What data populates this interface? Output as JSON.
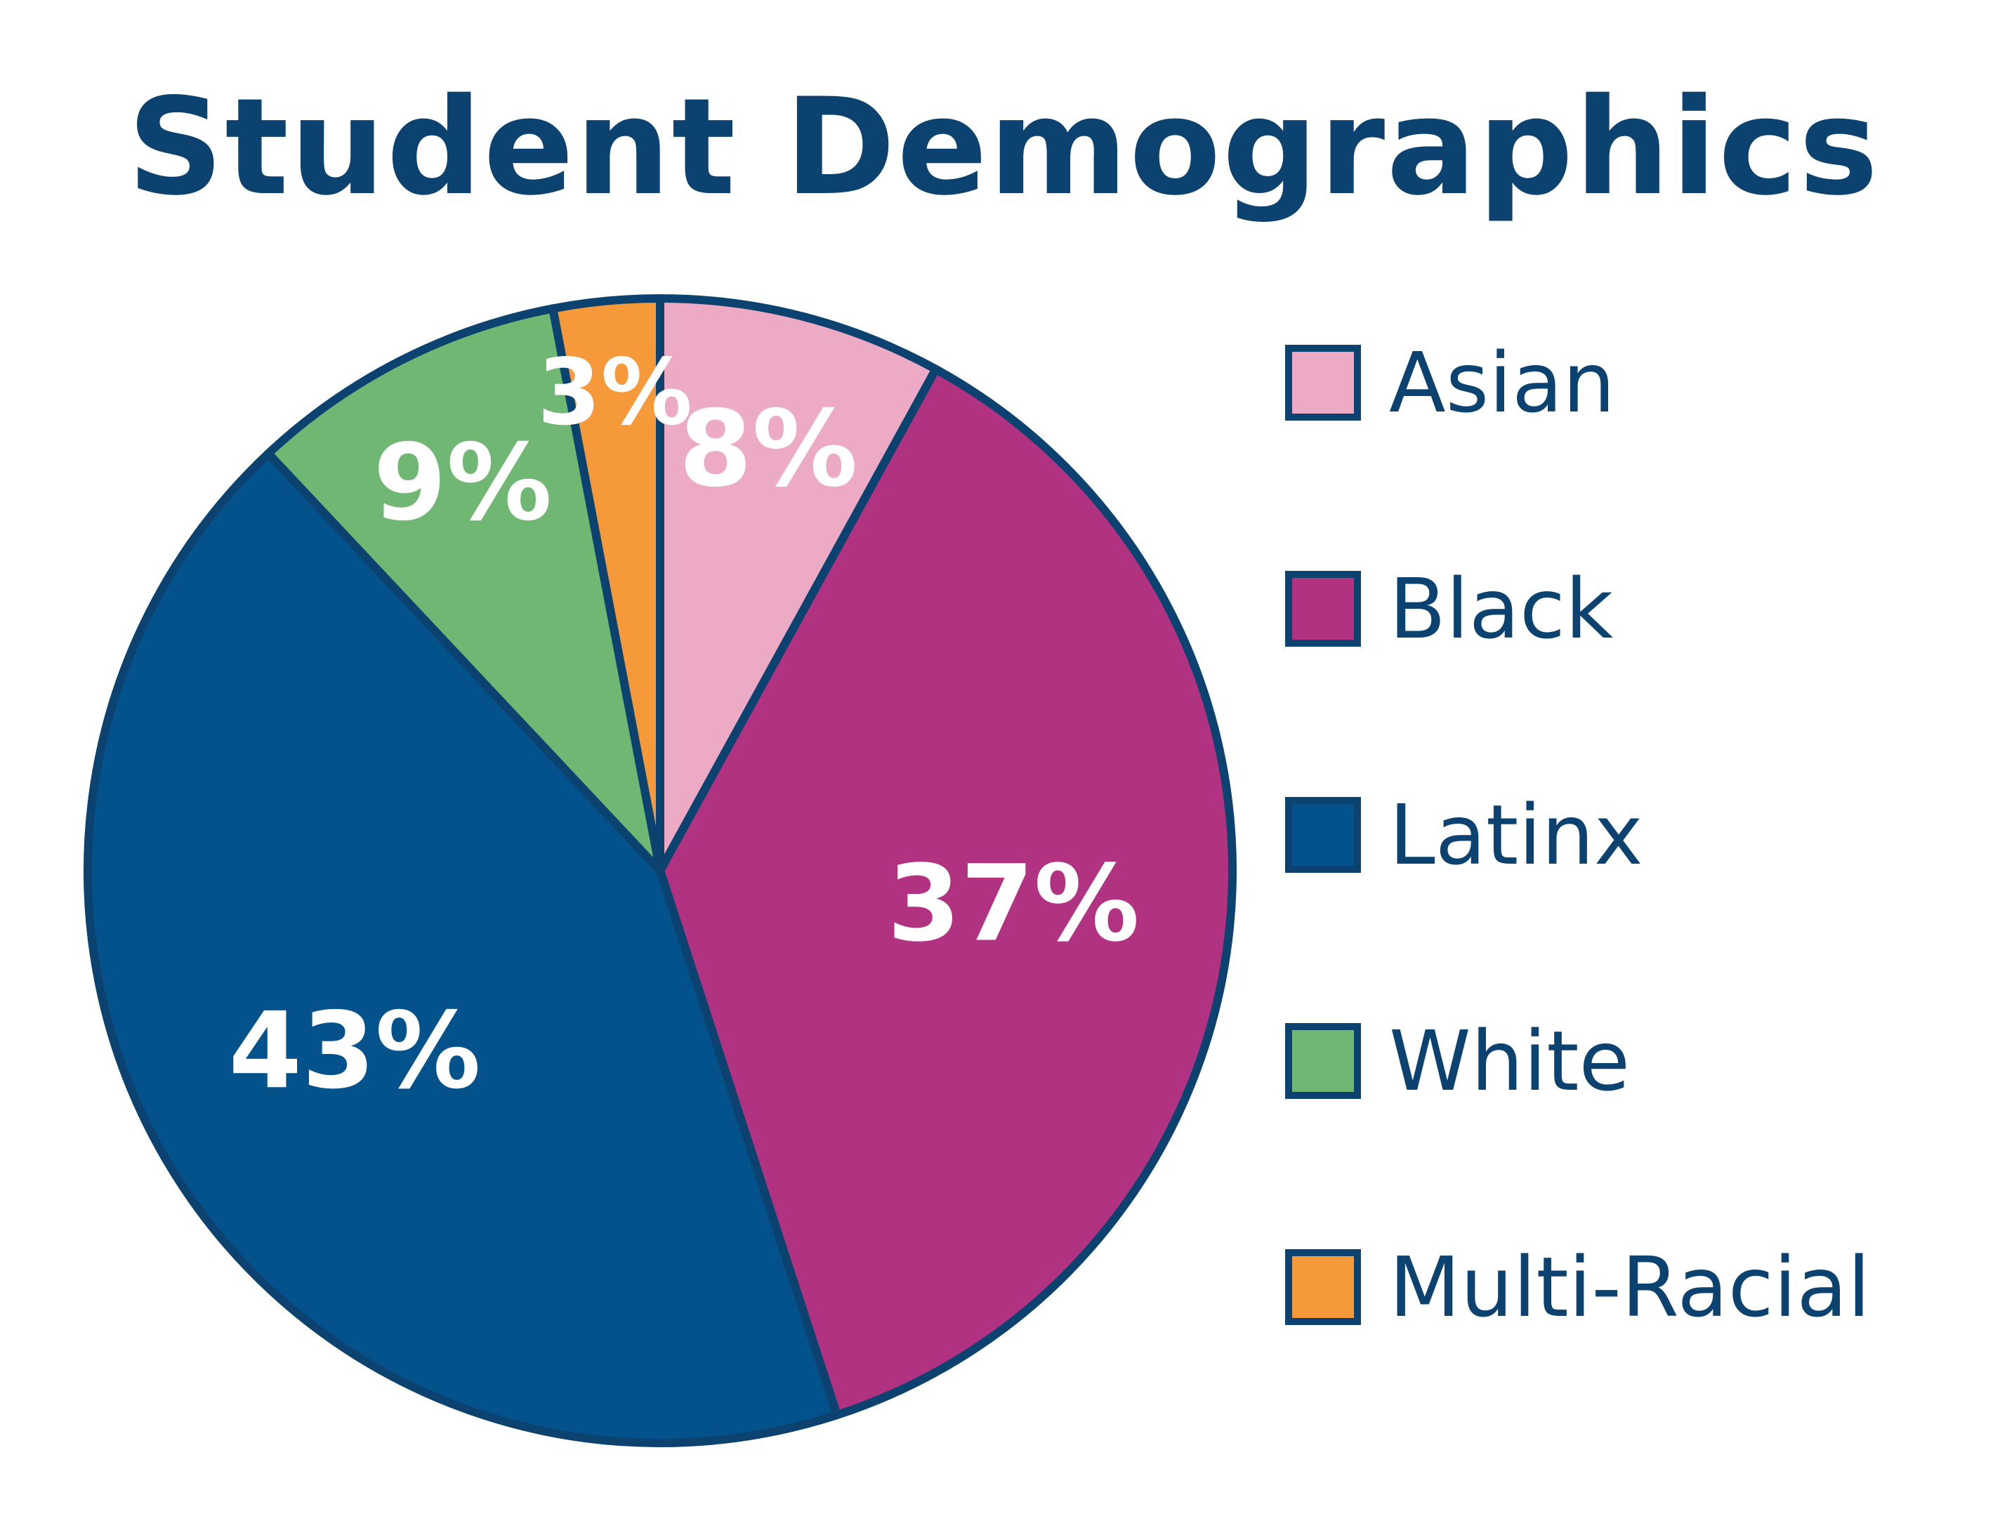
{
  "chart_data": {
    "type": "pie",
    "title": "Student Demographics",
    "slices": [
      {
        "label": "Asian",
        "value": 8,
        "display": "8%",
        "color": "#edaac4"
      },
      {
        "label": "Black",
        "value": 37,
        "display": "37%",
        "color": "#b23282"
      },
      {
        "label": "Latinx",
        "value": 43,
        "display": "43%",
        "color": "#04528c"
      },
      {
        "label": "White",
        "value": 9,
        "display": "9%",
        "color": "#6fb773"
      },
      {
        "label": "Multi-Racial",
        "value": 3,
        "display": "3%",
        "color": "#f5993b"
      }
    ],
    "start_angle_deg": 0,
    "direction": "clockwise",
    "legend_position": "right",
    "border_color": "#0c426f"
  }
}
